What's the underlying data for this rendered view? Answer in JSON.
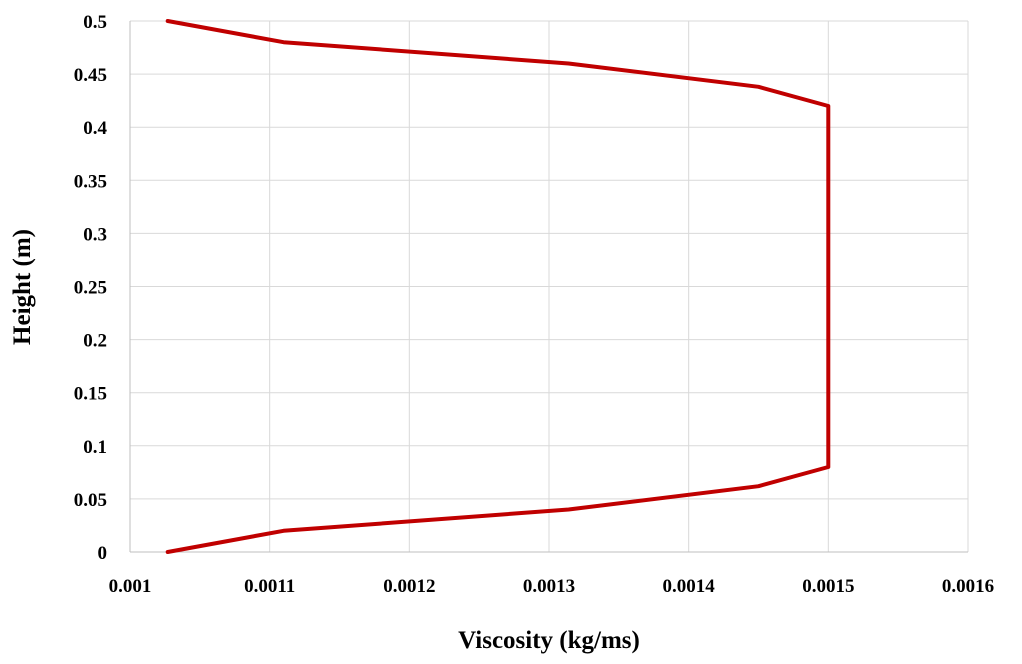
{
  "chart_data": {
    "type": "line",
    "title": "",
    "xlabel": "Viscosity (kg/ms)",
    "ylabel": "Height (m)",
    "xlim": [
      0.001,
      0.0016
    ],
    "ylim": [
      0,
      0.5
    ],
    "x_ticks": [
      "0.001",
      "0.0011",
      "0.0012",
      "0.0013",
      "0.0014",
      "0.0015",
      "0.0016"
    ],
    "y_ticks": [
      "0",
      "0.05",
      "0.1",
      "0.15",
      "0.2",
      "0.25",
      "0.3",
      "0.35",
      "0.4",
      "0.45",
      "0.5"
    ],
    "grid": true,
    "legend": "none",
    "series": [
      {
        "color": "#c00000",
        "x": [
          0.001027,
          0.00111,
          0.001314,
          0.00145,
          0.0015,
          0.0015,
          0.00145,
          0.001314,
          0.00111,
          0.001027
        ],
        "y": [
          0,
          0.02,
          0.04,
          0.062,
          0.08,
          0.42,
          0.438,
          0.46,
          0.48,
          0.5
        ]
      }
    ]
  }
}
